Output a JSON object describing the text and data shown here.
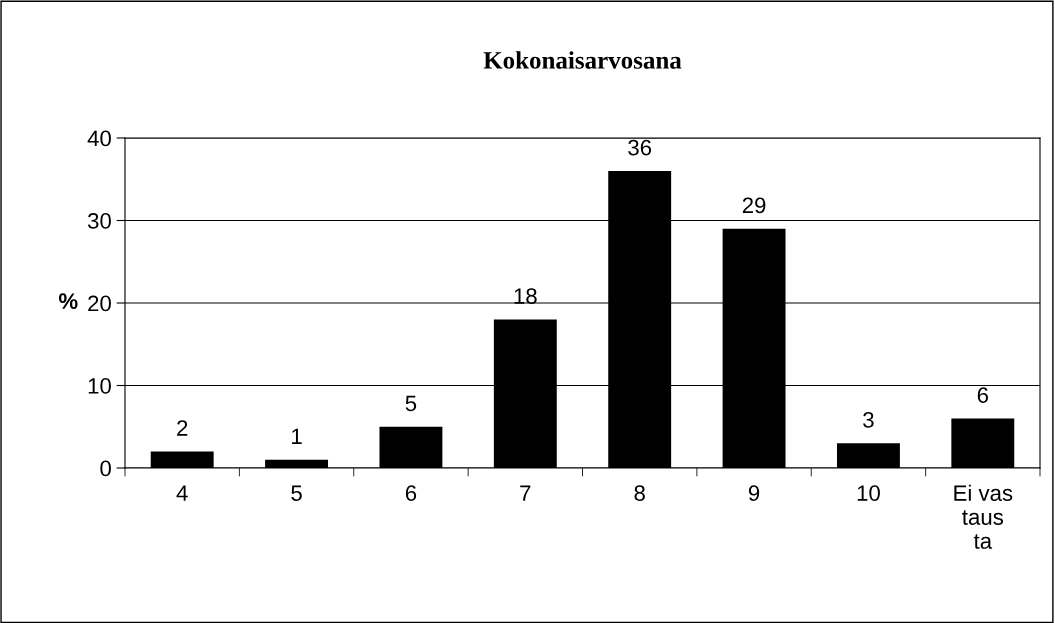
{
  "chart_data": {
    "type": "bar",
    "title": "Kokonaisarvosana",
    "ylabel": "%",
    "categories": [
      "4",
      "5",
      "6",
      "7",
      "8",
      "9",
      "10",
      "Ei vas\ntaus\nta"
    ],
    "values": [
      2,
      1,
      5,
      18,
      36,
      29,
      3,
      6
    ],
    "color": "#000000",
    "ylim": [
      0,
      40
    ],
    "yticks": [
      0,
      10,
      20,
      30,
      40
    ],
    "grid": "y",
    "data_labels": true
  }
}
